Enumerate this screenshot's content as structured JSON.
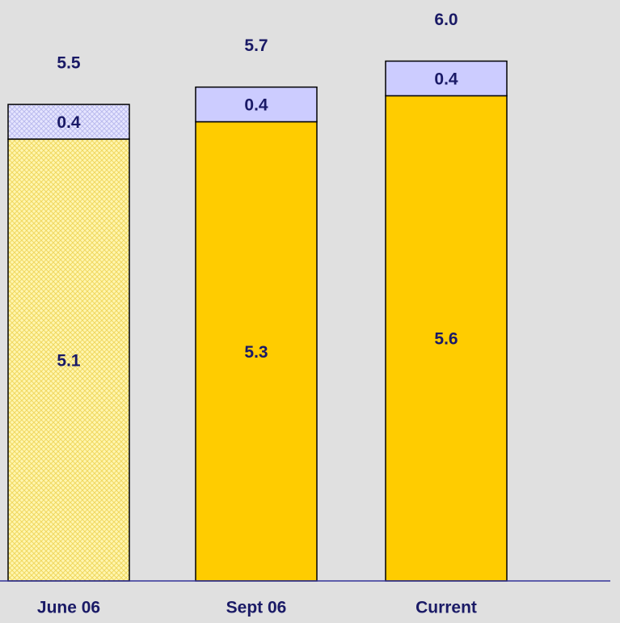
{
  "chart_data": {
    "type": "stacked_bar",
    "categories": [
      "June 06",
      "Sept 06",
      "Current"
    ],
    "series": [
      {
        "color": "#ffcc00",
        "values": [
          5.1,
          5.3,
          5.6
        ]
      },
      {
        "color": "#ccccff",
        "values": [
          0.4,
          0.4,
          0.4
        ]
      }
    ],
    "totals": [
      5.5,
      5.7,
      6.0
    ],
    "total_labels": [
      "5.5",
      "5.7",
      "6.0"
    ],
    "hatch": [
      true,
      false,
      false
    ],
    "ylim": [
      0,
      6.5
    ]
  }
}
